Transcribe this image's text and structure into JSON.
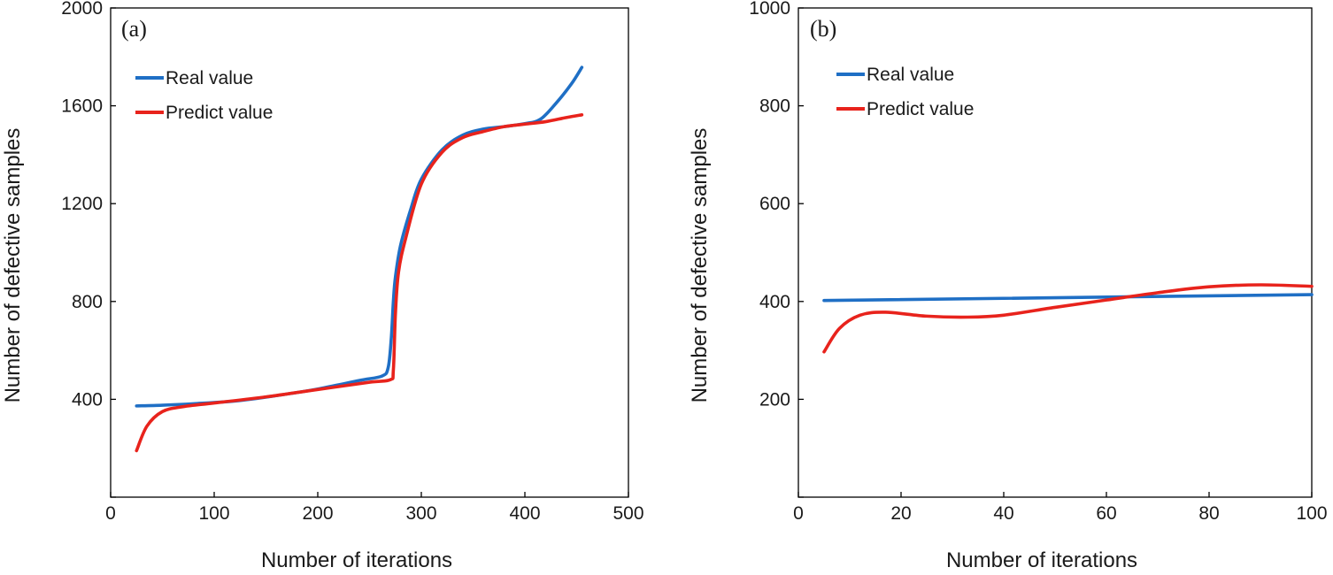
{
  "chart_data": [
    {
      "type": "line",
      "panel_label": "(a)",
      "xlabel": "Number of iterations",
      "ylabel": "Number of defective samples",
      "xlim": [
        0,
        500
      ],
      "ylim": [
        0,
        2000
      ],
      "x_ticks": [
        0,
        100,
        200,
        300,
        400,
        500
      ],
      "y_ticks": [
        0,
        400,
        800,
        1200,
        1600,
        2000
      ],
      "x_tick_labels": [
        "0",
        "100",
        "200",
        "300",
        "400",
        "500"
      ],
      "y_tick_labels": [
        "",
        "400",
        "800",
        "1200",
        "1600",
        "2000"
      ],
      "grid": false,
      "legend_position": "top-left",
      "series": [
        {
          "name": "Real value",
          "color": "#1f6fc5",
          "x": [
            25,
            50,
            80,
            120,
            160,
            200,
            240,
            262,
            268,
            271,
            273,
            275,
            280,
            290,
            300,
            320,
            340,
            360,
            380,
            400,
            415,
            430,
            445,
            455
          ],
          "y": [
            373,
            376,
            382,
            393,
            415,
            442,
            477,
            495,
            530,
            650,
            800,
            900,
            1030,
            1180,
            1300,
            1420,
            1480,
            1505,
            1515,
            1527,
            1545,
            1610,
            1690,
            1757
          ]
        },
        {
          "name": "Predict value",
          "color": "#e8231c",
          "x": [
            25,
            35,
            50,
            70,
            100,
            150,
            200,
            250,
            270,
            273,
            275,
            278,
            285,
            300,
            320,
            340,
            360,
            380,
            400,
            420,
            440,
            455
          ],
          "y": [
            190,
            290,
            350,
            370,
            385,
            410,
            440,
            470,
            480,
            520,
            750,
            920,
            1060,
            1280,
            1410,
            1470,
            1495,
            1515,
            1525,
            1535,
            1552,
            1563
          ]
        }
      ]
    },
    {
      "type": "line",
      "panel_label": "(b)",
      "xlabel": "Number of iterations",
      "ylabel": "Number of defective samples",
      "xlim": [
        0,
        100
      ],
      "ylim": [
        0,
        1000
      ],
      "x_ticks": [
        0,
        20,
        40,
        60,
        80,
        100
      ],
      "y_ticks": [
        0,
        200,
        400,
        600,
        800,
        1000
      ],
      "x_tick_labels": [
        "0",
        "20",
        "40",
        "60",
        "80",
        "100"
      ],
      "y_tick_labels": [
        "",
        "200",
        "400",
        "600",
        "800",
        "1000"
      ],
      "grid": false,
      "legend_position": "top-left",
      "series": [
        {
          "name": "Real value",
          "color": "#1f6fc5",
          "x": [
            5,
            100
          ],
          "y": [
            402,
            414
          ]
        },
        {
          "name": "Predict value",
          "color": "#e8231c",
          "x": [
            5,
            8,
            12,
            17,
            25,
            33,
            40,
            50,
            60,
            70,
            80,
            90,
            100
          ],
          "y": [
            297,
            345,
            372,
            378,
            370,
            368,
            372,
            388,
            403,
            418,
            430,
            434,
            431
          ]
        }
      ]
    }
  ]
}
